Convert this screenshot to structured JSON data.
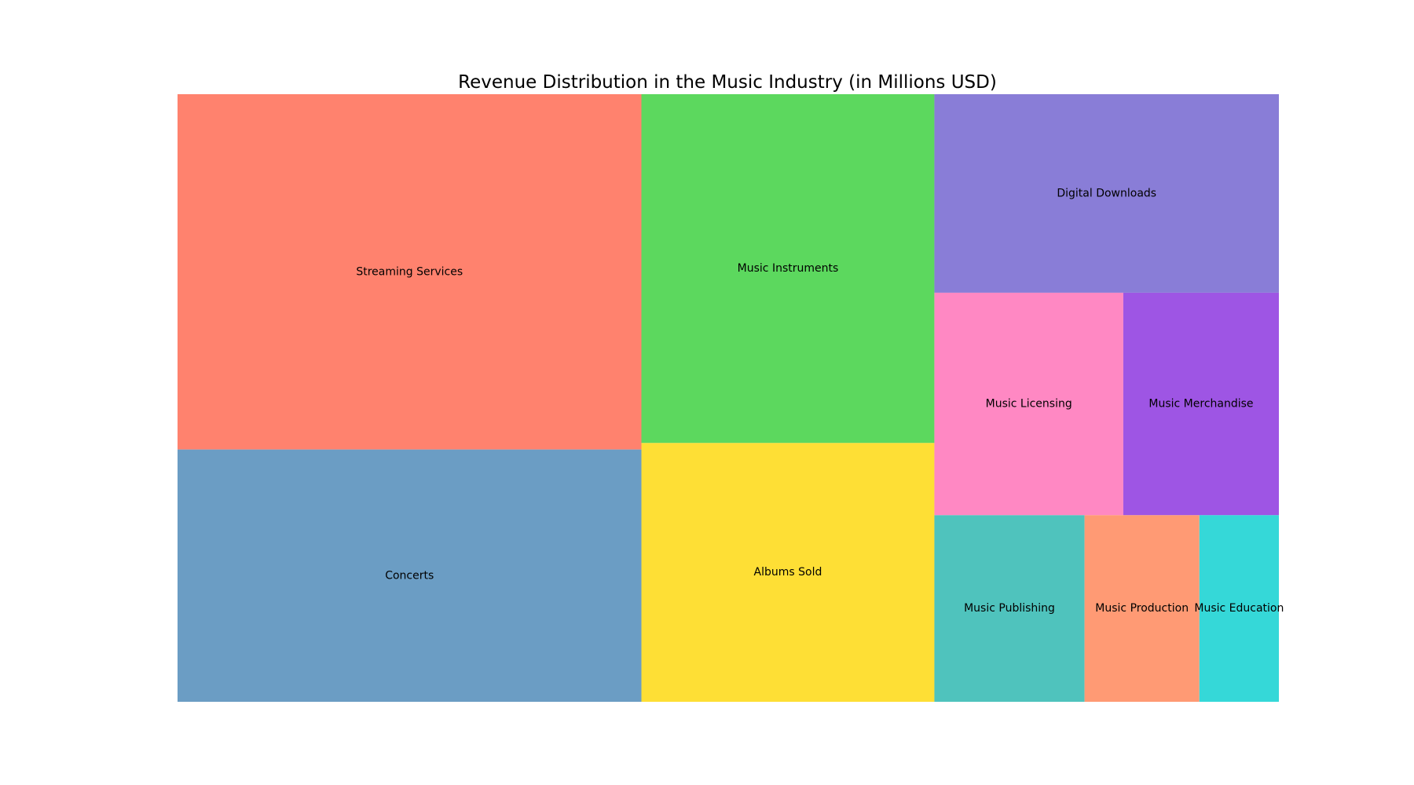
{
  "chart_data": {
    "type": "treemap",
    "title": "Revenue Distribution in the Music Industry (in Millions USD)",
    "xlabel": "",
    "ylabel": "",
    "grid": false,
    "legend": "none",
    "units": "Millions USD",
    "tiles": [
      {
        "label": "Streaming Services",
        "value": 20000,
        "color": "#FF826E"
      },
      {
        "label": "Concerts",
        "value": 14200,
        "color": "#6B9DC4"
      },
      {
        "label": "Music Instruments",
        "value": 12400,
        "color": "#5CD85E"
      },
      {
        "label": "Albums Sold",
        "value": 9200,
        "color": "#FEDF35"
      },
      {
        "label": "Digital Downloads",
        "value": 8300,
        "color": "#897DD7"
      },
      {
        "label": "Music Licensing",
        "value": 5100,
        "color": "#FF88C3"
      },
      {
        "label": "Music Merchandise",
        "value": 4200,
        "color": "#9E55E4"
      },
      {
        "label": "Music Publishing",
        "value": 3400,
        "color": "#4FC3BD"
      },
      {
        "label": "Music Production",
        "value": 2600,
        "color": "#FF9A74"
      },
      {
        "label": "Music Education",
        "value": 1800,
        "color": "#35D8D8"
      }
    ]
  }
}
